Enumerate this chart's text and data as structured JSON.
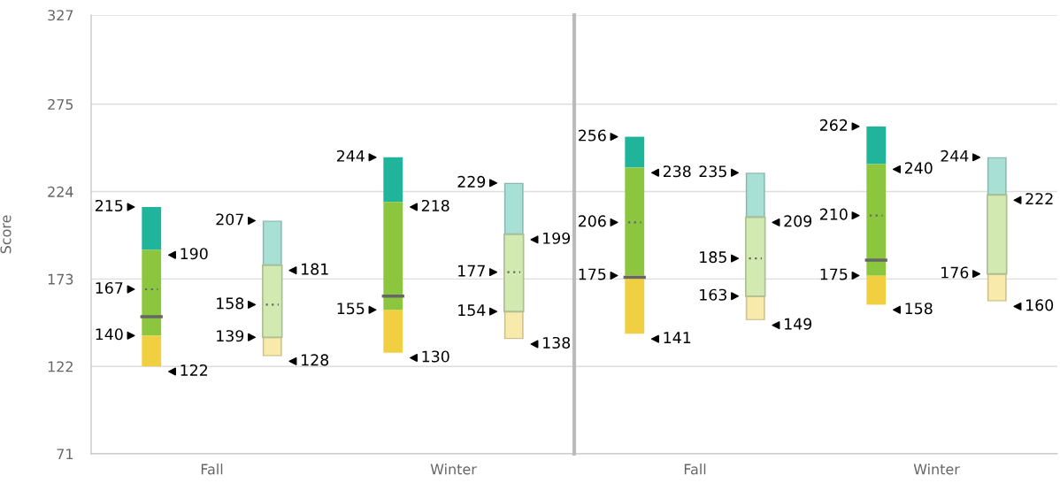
{
  "chart_data": [
    {
      "type": "box",
      "ylabel": "Score",
      "categories": [
        "Fall",
        "Winter"
      ],
      "ylim": [
        71,
        327
      ],
      "yticks": [
        71,
        122,
        173,
        224,
        275,
        327
      ],
      "grid": "y",
      "series": [
        {
          "color": "#8cc63f",
          "boxes": [
            {
              "low": 122,
              "q1": 140,
              "median": 151,
              "mean": 167,
              "q3": 190,
              "high": 215
            },
            {
              "low": 130,
              "q1": 155,
              "median": 163,
              "q3": 218,
              "high": 244
            }
          ]
        },
        {
          "color": "#d2e9b2",
          "boxes": [
            {
              "low": 128,
              "q1": 139,
              "median": null,
              "mean": 158,
              "q3": 181,
              "high": 207
            },
            {
              "low": 138,
              "q1": 154,
              "median": null,
              "mean": 177,
              "q3": 199,
              "high": 229
            }
          ]
        }
      ],
      "annotations": [
        "215",
        "167",
        "140",
        "190",
        "122",
        "207",
        "158",
        "139",
        "181",
        "128",
        "244",
        "155",
        "218",
        "130",
        "229",
        "177",
        "154",
        "199",
        "138"
      ]
    },
    {
      "type": "box",
      "categories": [
        "Fall",
        "Winter"
      ],
      "ylim": [
        71,
        327
      ],
      "yticks": [
        71,
        122,
        173,
        224,
        275,
        327
      ],
      "grid": "y",
      "tick_labels": "x",
      "series": [
        {
          "color": "#8cc63f",
          "boxes": [
            {
              "low": 141,
              "q1": 175,
              "median": 174,
              "mean": 206,
              "q3": 238,
              "high": 256
            },
            {
              "low": 158,
              "q1": 175,
              "median": 184,
              "mean": 210,
              "q3": 240,
              "high": 262
            }
          ]
        },
        {
          "color": "#d2e9b2",
          "boxes": [
            {
              "low": 149,
              "q1": 163,
              "median": null,
              "mean": 185,
              "q3": 209,
              "high": 235
            },
            {
              "low": 160,
              "q1": 176,
              "median": null,
              "q3": 222,
              "high": 244
            }
          ]
        }
      ],
      "annotations": [
        "256",
        "206",
        "175",
        "238",
        "141",
        "235",
        "185",
        "163",
        "209",
        "149",
        "262",
        "210",
        "175",
        "240",
        "158",
        "244",
        "176",
        "222",
        "160"
      ]
    }
  ]
}
